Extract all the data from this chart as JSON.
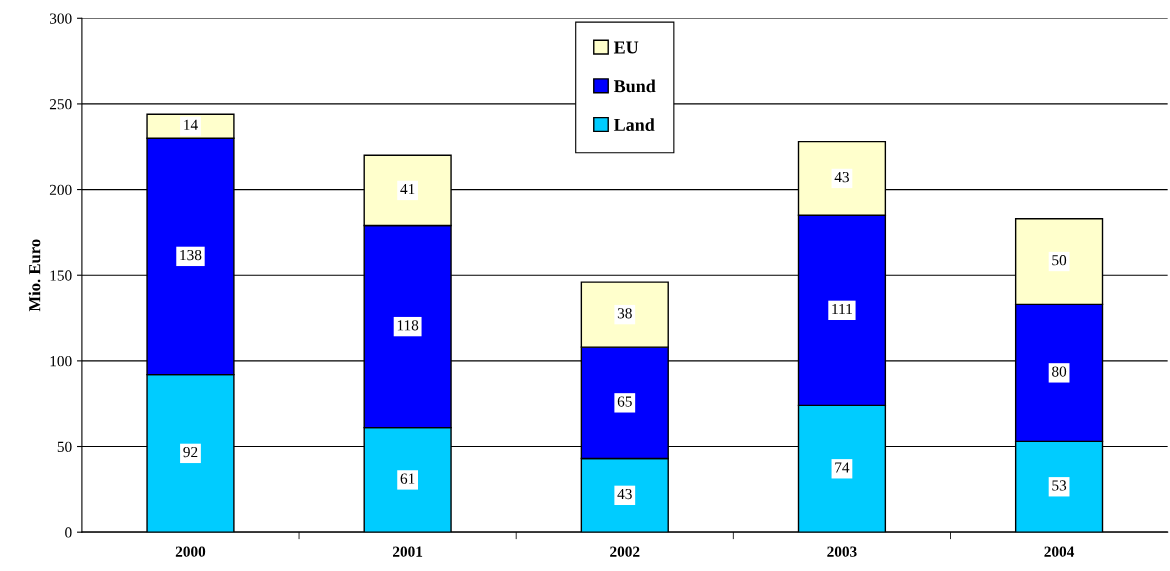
{
  "chart_data": {
    "type": "bar",
    "stacked": true,
    "ylabel": "Mio. Euro",
    "categories": [
      "2000",
      "2001",
      "2002",
      "2003",
      "2004"
    ],
    "series": [
      {
        "name": "Land",
        "color": "#00ccff",
        "values": [
          92,
          61,
          43,
          74,
          53
        ]
      },
      {
        "name": "Bund",
        "color": "#0000ff",
        "values": [
          138,
          118,
          65,
          111,
          80
        ]
      },
      {
        "name": "EU",
        "color": "#ffffcc",
        "values": [
          14,
          41,
          38,
          43,
          50
        ]
      }
    ],
    "ylim": [
      0,
      300
    ],
    "yticks": [
      0,
      50,
      100,
      150,
      200,
      250,
      300
    ],
    "grid": "y",
    "legend": "top",
    "data_labels": true
  }
}
